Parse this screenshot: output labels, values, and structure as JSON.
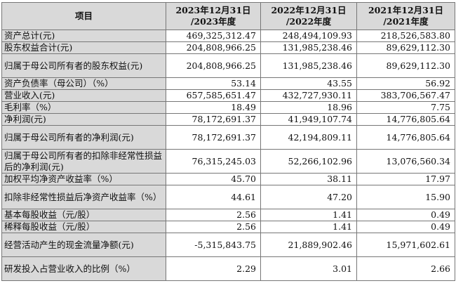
{
  "header": {
    "item": "项目",
    "col1_line1": "2023年12月31日",
    "col1_line2": "/2023年度",
    "col2_line1": "2022年12月31日",
    "col2_line2": "/2022年度",
    "col3_line1": "2021年12月31日",
    "col3_line2": "/2021年度"
  },
  "rows": [
    {
      "label": "资产总计(元)",
      "v2023": "469,325,312.47",
      "v2022": "248,494,109.93",
      "v2021": "218,526,583.80"
    },
    {
      "label": "股东权益合计(元)",
      "v2023": "204,808,966.25",
      "v2022": "131,985,238.46",
      "v2021": "89,629,112.30"
    },
    {
      "label": "归属于母公司所有者的股东权益(元)",
      "v2023": "204,808,966.25",
      "v2022": "131,985,238.46",
      "v2021": "89,629,112.30"
    },
    {
      "label": "资产负债率（母公司）（%）",
      "v2023": "53.14",
      "v2022": "43.55",
      "v2021": "56.92"
    },
    {
      "label": "营业收入(元)",
      "v2023": "657,585,651.47",
      "v2022": "432,727,930.11",
      "v2021": "383,706,567.47"
    },
    {
      "label": "毛利率（%）",
      "v2023": "18.49",
      "v2022": "18.96",
      "v2021": "7.75"
    },
    {
      "label": "净利润(元)",
      "v2023": "78,172,691.37",
      "v2022": "41,949,107.74",
      "v2021": "14,776,805.64"
    },
    {
      "label": "归属于母公司所有者的净利润(元)",
      "v2023": "78,172,691.37",
      "v2022": "42,194,809.11",
      "v2021": "14,776,805.64"
    },
    {
      "label": "归属于母公司所有者的扣除非经常性损益后的净利润(元)",
      "v2023": "76,315,245.03",
      "v2022": "52,266,102.96",
      "v2021": "13,076,560.34"
    },
    {
      "label": "加权平均净资产收益率（%）",
      "v2023": "45.70",
      "v2022": "38.11",
      "v2021": "17.97"
    },
    {
      "label": "扣除非经常性损益后净资产收益率（%）",
      "v2023": "44.61",
      "v2022": "47.20",
      "v2021": "15.90"
    },
    {
      "label": "基本每股收益（元/股）",
      "v2023": "2.56",
      "v2022": "1.41",
      "v2021": "0.49"
    },
    {
      "label": "稀释每股收益（元/股）",
      "v2023": "2.56",
      "v2022": "1.41",
      "v2021": "0.49"
    },
    {
      "label": "经营活动产生的现金流量净额(元)",
      "v2023": "-5,315,843.75",
      "v2022": "21,889,902.46",
      "v2021": "15,971,602.61"
    },
    {
      "label": "研发投入占营业收入的比例（%）",
      "v2023": "2.29",
      "v2022": "3.01",
      "v2021": "2.66"
    }
  ]
}
